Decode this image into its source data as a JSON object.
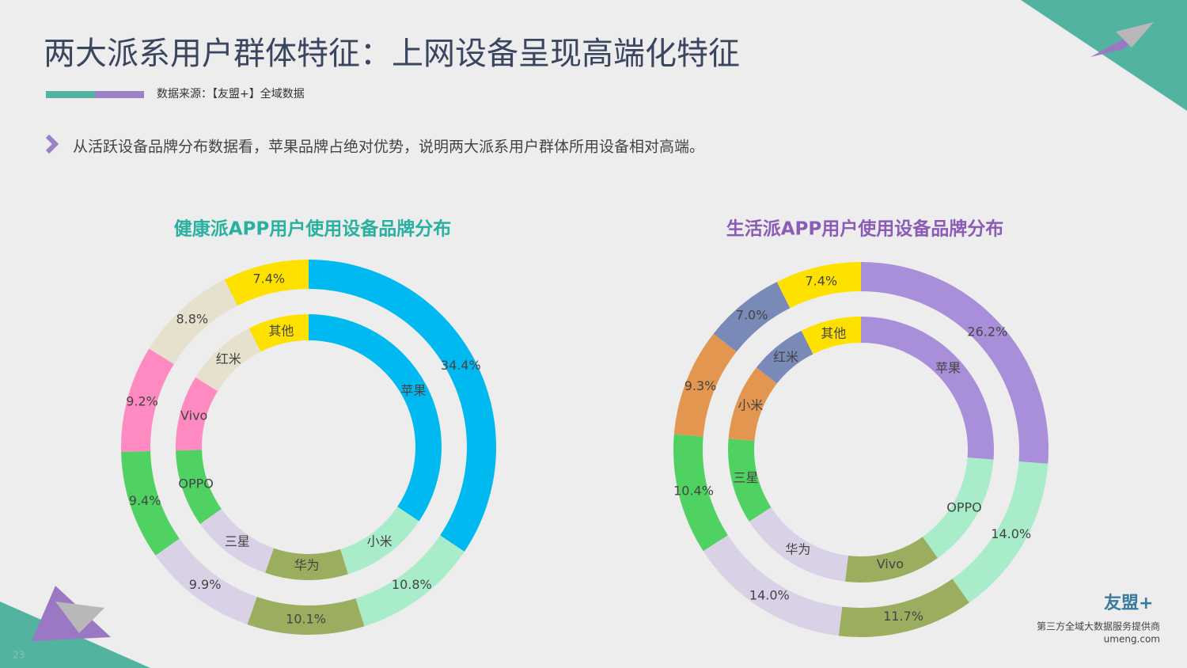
{
  "header": {
    "title": "两大派系用户群体特征：上网设备呈现高端化特征",
    "source": "数据来源：【友盟+】全域数据"
  },
  "note": "从活跃设备品牌分布数据看，苹果品牌占绝对优势，说明两大派系用户群体所用设备相对高端。",
  "chart_data": [
    {
      "type": "donut",
      "title": "健康派APP用户使用设备品牌分布",
      "categories": [
        "苹果",
        "小米",
        "华为",
        "三星",
        "OPPO",
        "Vivo",
        "红米",
        "其他"
      ],
      "values": [
        34.4,
        10.8,
        10.1,
        9.9,
        9.4,
        9.2,
        8.8,
        7.4
      ],
      "value_labels": [
        "34.4%",
        "10.8%",
        "10.1%",
        "9.9%",
        "9.4%",
        "9.2%",
        "8.8%",
        "7.4%"
      ],
      "colors": [
        "#00b9f1",
        "#a8ecca",
        "#9bae60",
        "#d9d1e5",
        "#50d262",
        "#ff8ac2",
        "#e5e1cd",
        "#ffe100"
      ]
    },
    {
      "type": "donut",
      "title": "生活派APP用户使用设备品牌分布",
      "categories": [
        "苹果",
        "OPPO",
        "Vivo",
        "华为",
        "三星",
        "小米",
        "红米",
        "其他"
      ],
      "values": [
        26.2,
        14.0,
        11.7,
        14.0,
        10.4,
        9.3,
        7.0,
        7.4
      ],
      "value_labels": [
        "26.2%",
        "14.0%",
        "11.7%",
        "14.0%",
        "10.4%",
        "9.3%",
        "7.0%",
        "7.4%"
      ],
      "colors": [
        "#a98fd9",
        "#a8ecca",
        "#9bae60",
        "#d9d1e5",
        "#50d262",
        "#e3964f",
        "#7a8ab8",
        "#ffe100"
      ]
    }
  ],
  "footer": {
    "logo": "友盟+",
    "tagline": "第三方全域大数据服务提供商",
    "url": "umeng.com",
    "page": "23"
  }
}
